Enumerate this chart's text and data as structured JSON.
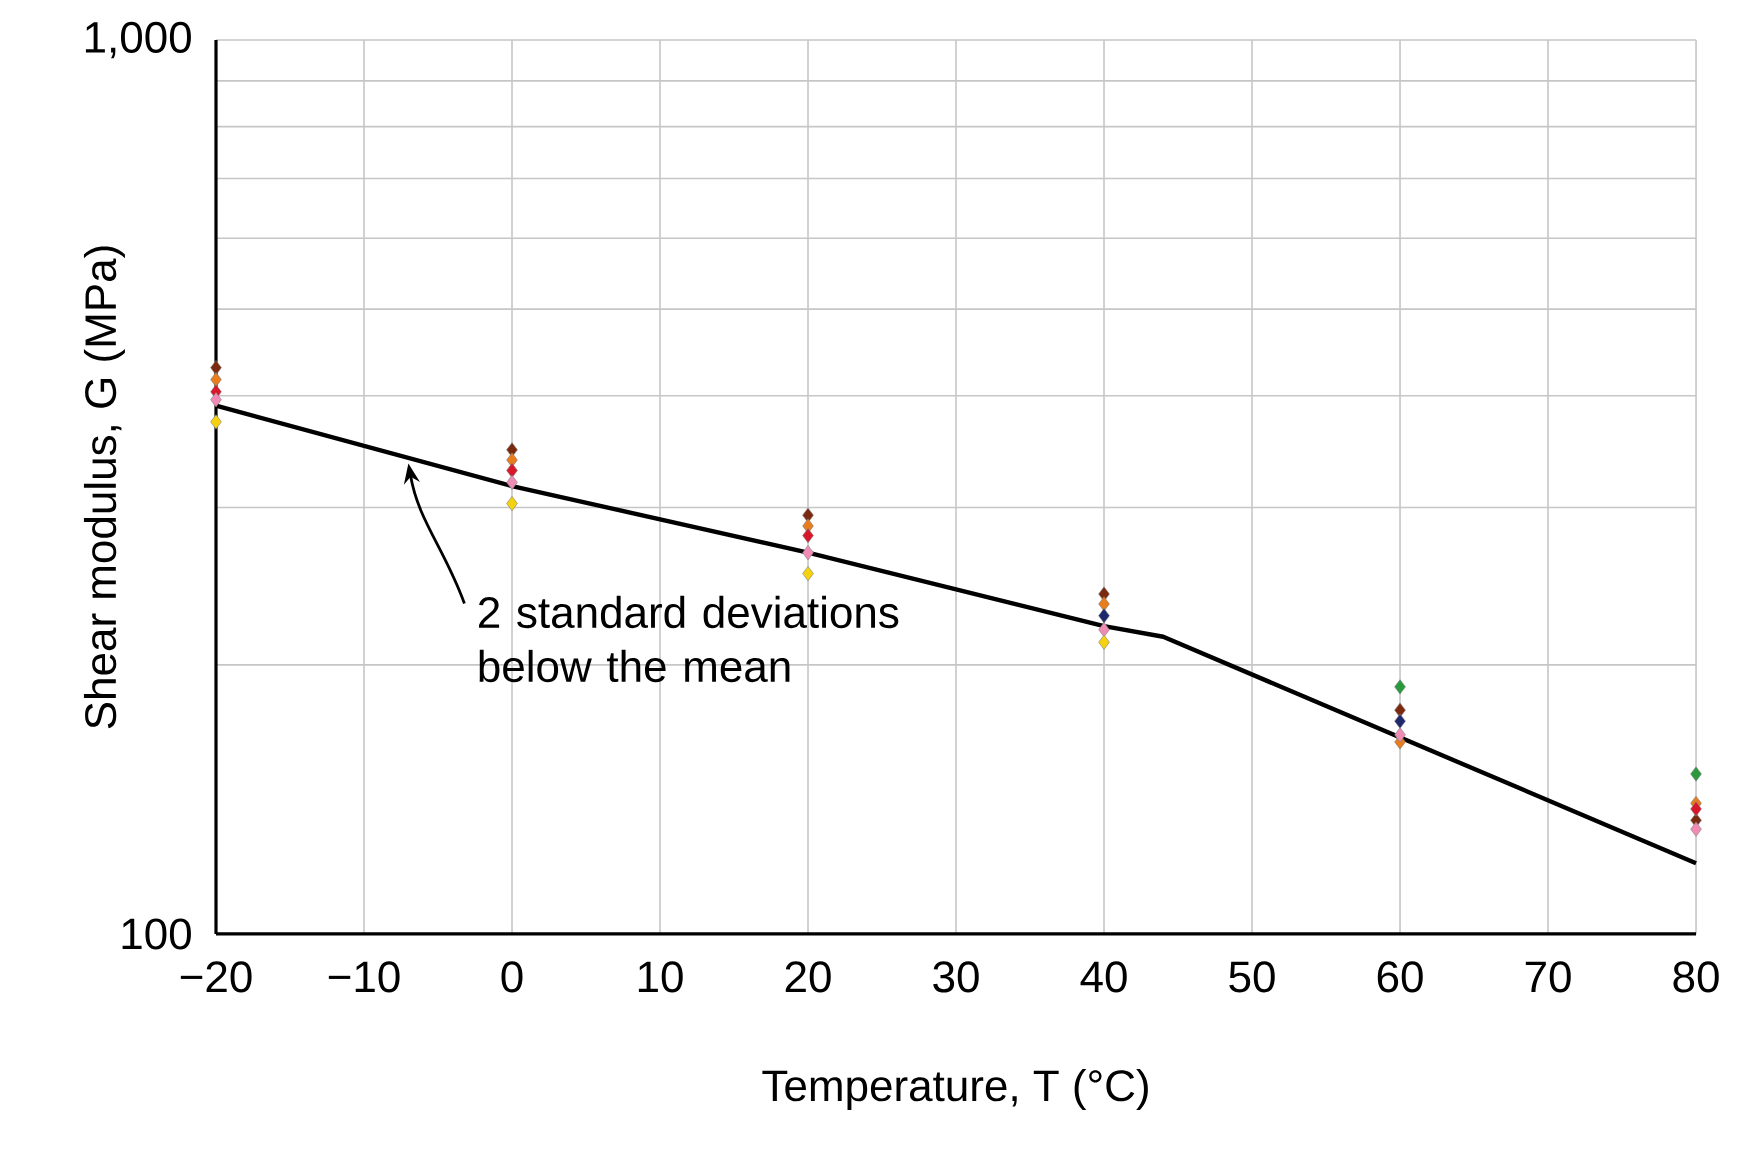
{
  "chart_data": {
    "type": "scatter",
    "xlabel": "Temperature, T (°C)",
    "ylabel": "Shear modulus, G (MPa)",
    "xlim": [
      -20,
      80
    ],
    "ylim": [
      100,
      1000
    ],
    "log": "y",
    "grid": true,
    "marker": "diamond",
    "xticks": [
      {
        "value": -20,
        "label": "−20"
      },
      {
        "value": -10,
        "label": "−10"
      },
      0,
      10,
      20,
      30,
      40,
      50,
      60,
      70,
      80
    ],
    "yticks": [
      100,
      {
        "value": 200,
        "label": null
      },
      {
        "value": 300,
        "label": null
      },
      {
        "value": 400,
        "label": null
      },
      {
        "value": 500,
        "label": null
      },
      {
        "value": 600,
        "label": null
      },
      {
        "value": 700,
        "label": null
      },
      {
        "value": 800,
        "label": null
      },
      {
        "value": 900,
        "label": null
      },
      {
        "value": 1000,
        "label": "1,000"
      }
    ],
    "series": [
      {
        "type": "line",
        "marker": "none",
        "color": "#000000",
        "x": [
          -20,
          0,
          20,
          40,
          44,
          80
        ],
        "values": [
          390,
          317,
          267,
          221,
          215,
          120
        ]
      },
      {
        "color": "#7b2a10",
        "x": [
          -20,
          0,
          20,
          40,
          60,
          80
        ],
        "values": [
          430,
          348,
          294,
          240,
          178,
          134
        ]
      },
      {
        "color": "#e87d1e",
        "x": [
          -20,
          0,
          20,
          40,
          60,
          80
        ],
        "values": [
          417,
          339,
          286,
          234,
          164,
          140
        ]
      },
      {
        "color": "#d8182a",
        "x": [
          -20,
          0,
          20,
          80
        ],
        "values": [
          404,
          330,
          279,
          138
        ]
      },
      {
        "color": "#ef8bb5",
        "x": [
          -20,
          0,
          20,
          40,
          60,
          80
        ],
        "values": [
          396,
          320,
          267,
          219,
          167,
          131
        ]
      },
      {
        "color": "#f5d10f",
        "x": [
          -20,
          0,
          20,
          40
        ],
        "values": [
          374,
          303,
          253,
          212
        ]
      },
      {
        "color": "#1f2a6e",
        "x": [
          40,
          60
        ],
        "values": [
          227,
          173
        ]
      },
      {
        "color": "#2a9a3c",
        "x": [
          60,
          80
        ],
        "values": [
          189,
          151
        ]
      }
    ],
    "annotations": [
      {
        "text": "2 standard deviations below the mean",
        "x": -7,
        "y": 336
      }
    ]
  }
}
